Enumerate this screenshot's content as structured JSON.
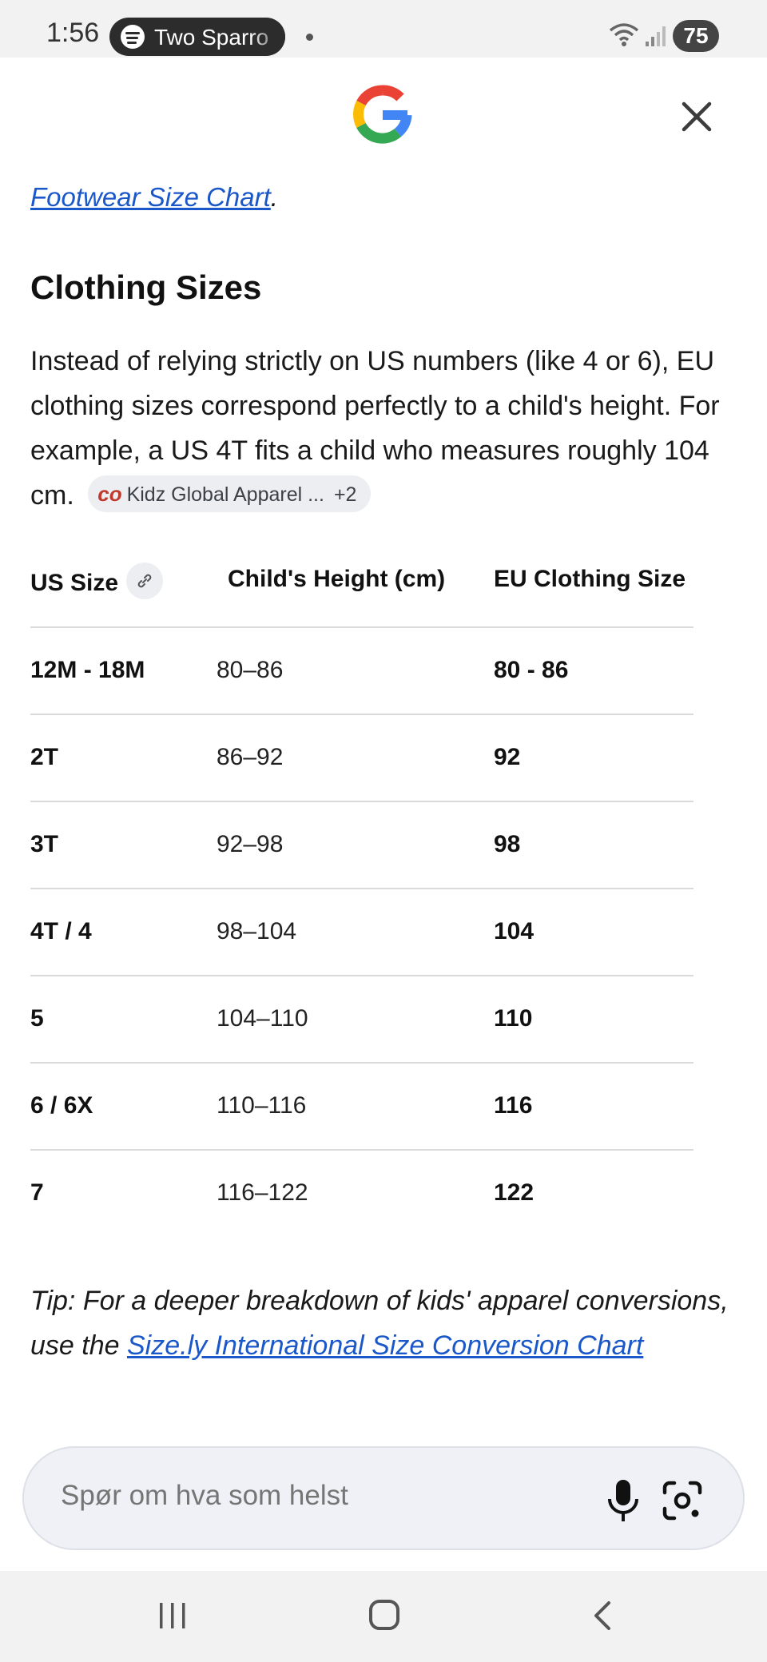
{
  "status_bar": {
    "time": "1:56",
    "media_pill": "Two Sparro",
    "battery": "75"
  },
  "header": {
    "logo_icon": "google-g-icon",
    "close_icon": "close-icon"
  },
  "content": {
    "footwear_link": "Footwear Size Chart",
    "footwear_suffix": ".",
    "section_title": "Clothing Sizes",
    "intro": "Instead of relying strictly on US numbers (like 4 or 6), EU clothing sizes correspond perfectly to a child's height. For example, a US 4T fits a child who measures roughly 104 cm.",
    "source_chip": {
      "icon": "co",
      "label": "Kidz Global Apparel ...",
      "more": "+2"
    },
    "table": {
      "headers": [
        "US Size",
        "Child's Height (cm)",
        "EU Clothing Size"
      ],
      "rows": [
        [
          "12M - 18M",
          "80–86",
          "80 - 86"
        ],
        [
          "2T",
          "86–92",
          "92"
        ],
        [
          "3T",
          "92–98",
          "98"
        ],
        [
          "4T / 4",
          "98–104",
          "104"
        ],
        [
          "5",
          "104–110",
          "110"
        ],
        [
          "6 / 6X",
          "110–116",
          "116"
        ],
        [
          "7",
          "116–122",
          "122"
        ]
      ]
    },
    "tip_prefix": "Tip: For a deeper breakdown of kids' apparel conversions, use the ",
    "tip_link": "Size.ly International Size Conversion Chart"
  },
  "search": {
    "placeholder": "Spør om hva som helst",
    "mic_icon": "microphone-icon",
    "lens_icon": "camera-lens-icon"
  },
  "colors": {
    "link": "#1a57c9",
    "background": "#ffffff",
    "search_bg": "#eff1f6"
  }
}
